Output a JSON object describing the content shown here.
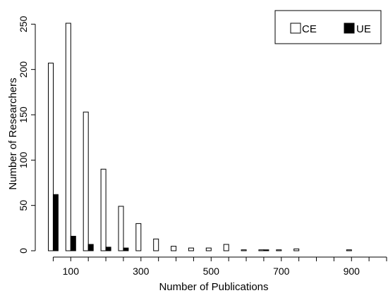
{
  "chart_data": {
    "type": "bar",
    "xlabel": "Number of Publications",
    "ylabel": "Number of Researchers",
    "x_ticks": [
      100,
      300,
      500,
      700,
      900
    ],
    "y_ticks": [
      0,
      50,
      100,
      150,
      200,
      250
    ],
    "bin_centers": [
      50,
      100,
      150,
      200,
      250,
      300,
      350,
      400,
      450,
      500,
      550,
      600,
      650,
      700,
      750,
      800,
      850,
      900,
      950
    ],
    "series": [
      {
        "name": "CE",
        "color": "#ffffff",
        "values": [
          207,
          251,
          153,
          90,
          49,
          30,
          13,
          5,
          3,
          3,
          7,
          1,
          1,
          1,
          2,
          0,
          0,
          1,
          0
        ]
      },
      {
        "name": "UE",
        "color": "#000000",
        "values": [
          62,
          16,
          7,
          4,
          3,
          0,
          0,
          0,
          0,
          0,
          0,
          0,
          1,
          0,
          0,
          0,
          0,
          0,
          0
        ]
      }
    ],
    "xlim": [
      25,
      1000
    ],
    "ylim": [
      0,
      265
    ],
    "grid": false,
    "legend_position": "top-right"
  }
}
